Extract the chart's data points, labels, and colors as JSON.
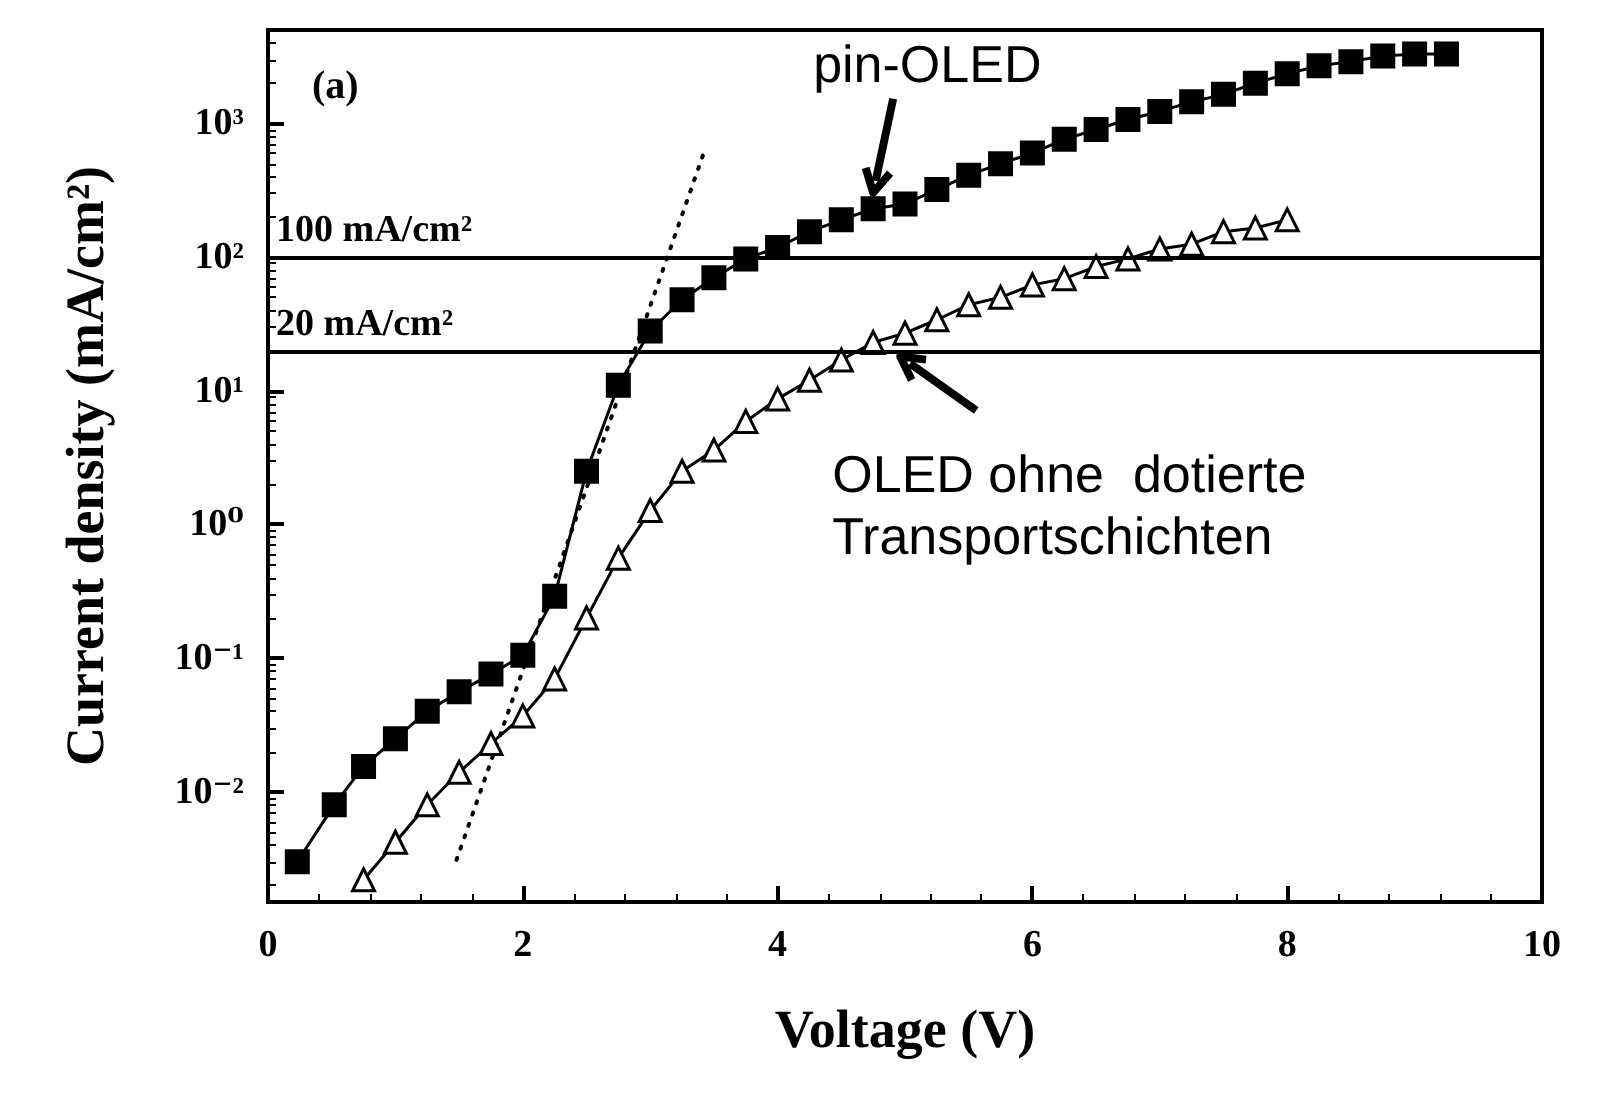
{
  "chart_data": {
    "type": "line",
    "xlabel": "Voltage (V)",
    "ylabel": "Current density (mA/cm²)",
    "xlim": [
      0,
      10
    ],
    "xticks": [
      0,
      2,
      4,
      6,
      8,
      10
    ],
    "ylim": [
      0.0015,
      5000
    ],
    "log": "y",
    "yticks": [
      {
        "value": 0.01,
        "label": "10⁻²"
      },
      {
        "value": 0.1,
        "label": "10⁻¹"
      },
      {
        "value": 1,
        "label": "10⁰"
      },
      {
        "value": 10,
        "label": "10¹"
      },
      {
        "value": 100,
        "label": "10²"
      },
      {
        "value": 1000,
        "label": "10³"
      }
    ],
    "grid": false,
    "series": [
      {
        "color": "#000000",
        "marker": "square",
        "line_style": "solid",
        "x": [
          0.23,
          0.52,
          0.75,
          1.0,
          1.25,
          1.5,
          1.75,
          2.0,
          2.25,
          2.5,
          2.75,
          3.0,
          3.25,
          3.5,
          3.75,
          4.0,
          4.25,
          4.5,
          4.75,
          5.0,
          5.25,
          5.5,
          5.75,
          6.0,
          6.25,
          6.5,
          6.75,
          7.0,
          7.25,
          7.5,
          7.75,
          8.0,
          8.25,
          8.5,
          8.75,
          9.0,
          9.25
        ],
        "values": [
          0.003,
          0.008,
          0.0155,
          0.025,
          0.04,
          0.056,
          0.076,
          0.105,
          0.29,
          2.5,
          11,
          28,
          48,
          70,
          97,
          118,
          155,
          190,
          230,
          250,
          320,
          410,
          500,
          600,
          760,
          900,
          1070,
          1230,
          1450,
          1650,
          2000,
          2350,
          2700,
          2900,
          3200,
          3300,
          3300
        ]
      },
      {
        "color": "#000000",
        "marker": "triangle",
        "line_style": "solid",
        "x": [
          0.75,
          1.0,
          1.25,
          1.5,
          1.75,
          2.0,
          2.25,
          2.5,
          2.75,
          3.0,
          3.25,
          3.5,
          3.75,
          4.0,
          4.25,
          4.5,
          4.75,
          5.0,
          5.25,
          5.5,
          5.75,
          6.0,
          6.25,
          6.5,
          6.75,
          7.0,
          7.25,
          7.5,
          7.75,
          8.0
        ],
        "values": [
          0.0022,
          0.0042,
          0.008,
          0.014,
          0.023,
          0.037,
          0.07,
          0.2,
          0.56,
          1.27,
          2.5,
          3.6,
          5.9,
          8.7,
          12,
          17,
          23,
          27,
          34,
          44,
          50,
          62,
          69,
          85,
          97,
          115,
          125,
          155,
          165,
          190
        ]
      },
      {
        "color": "#000000",
        "marker": "none",
        "line_style": "dotted",
        "x": [
          1.48,
          3.42
        ],
        "values": [
          0.0031,
          600
        ]
      }
    ],
    "ref_lines": [
      {
        "axis": "y",
        "value": 100,
        "label": "100 mA/cm²",
        "color": "#000000",
        "line_style": "solid"
      },
      {
        "axis": "y",
        "value": 20,
        "label": "20 mA/cm²",
        "color": "#000000",
        "line_style": "solid"
      }
    ],
    "annotations": [
      "(a)",
      {
        "text": "pin-OLED",
        "x": 4.75,
        "y": 230
      },
      {
        "text": "OLED ohne  dotierte\nTransportschichten",
        "x": 4.9,
        "y": 20
      }
    ]
  }
}
